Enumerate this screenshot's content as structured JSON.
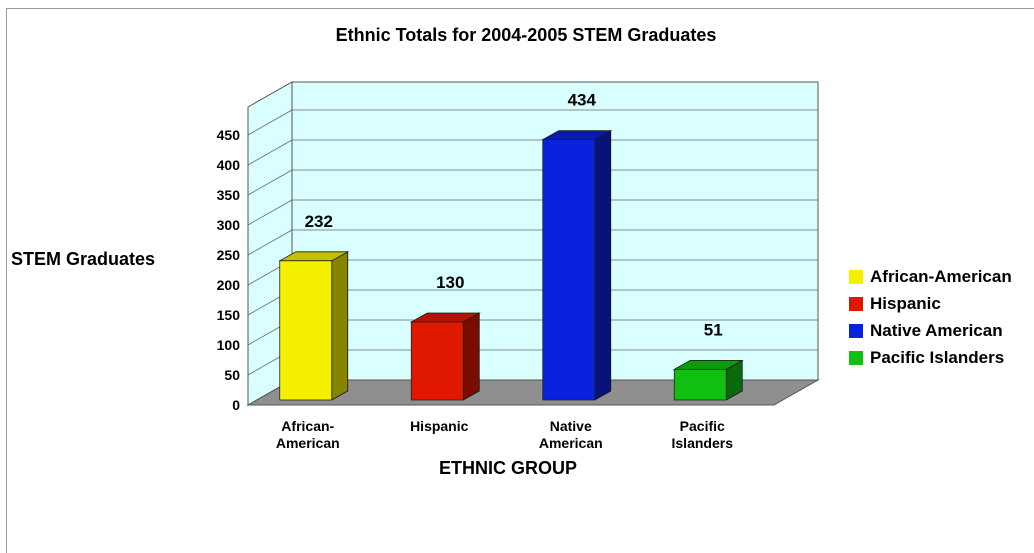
{
  "chart_data": {
    "type": "bar",
    "title": "Ethnic Totals for 2004-2005 STEM Graduates",
    "xlabel": "ETHNIC GROUP",
    "ylabel": "STEM Graduates",
    "categories": [
      [
        "African-",
        "American"
      ],
      [
        "Hispanic"
      ],
      [
        "Native",
        "American"
      ],
      [
        "Pacific",
        "Islanders"
      ]
    ],
    "values": [
      232,
      130,
      434,
      51
    ],
    "data_labels": [
      "232",
      "130",
      "434",
      "51"
    ],
    "yticks": [
      "0",
      "50",
      "100",
      "150",
      "200",
      "250",
      "300",
      "350",
      "400",
      "450"
    ],
    "ylim": [
      0,
      450
    ],
    "grid": true,
    "three_d": true,
    "legend_position": "right",
    "legend": [
      {
        "label": "African-American",
        "color": "#f5f000"
      },
      {
        "label": "Hispanic",
        "color": "#e01800"
      },
      {
        "label": "Native American",
        "color": "#0a22dd"
      },
      {
        "label": "Pacific Islanders",
        "color": "#10c010"
      }
    ],
    "colors": {
      "wall": "#d9ffff",
      "floor": "#8f8f8f"
    }
  }
}
